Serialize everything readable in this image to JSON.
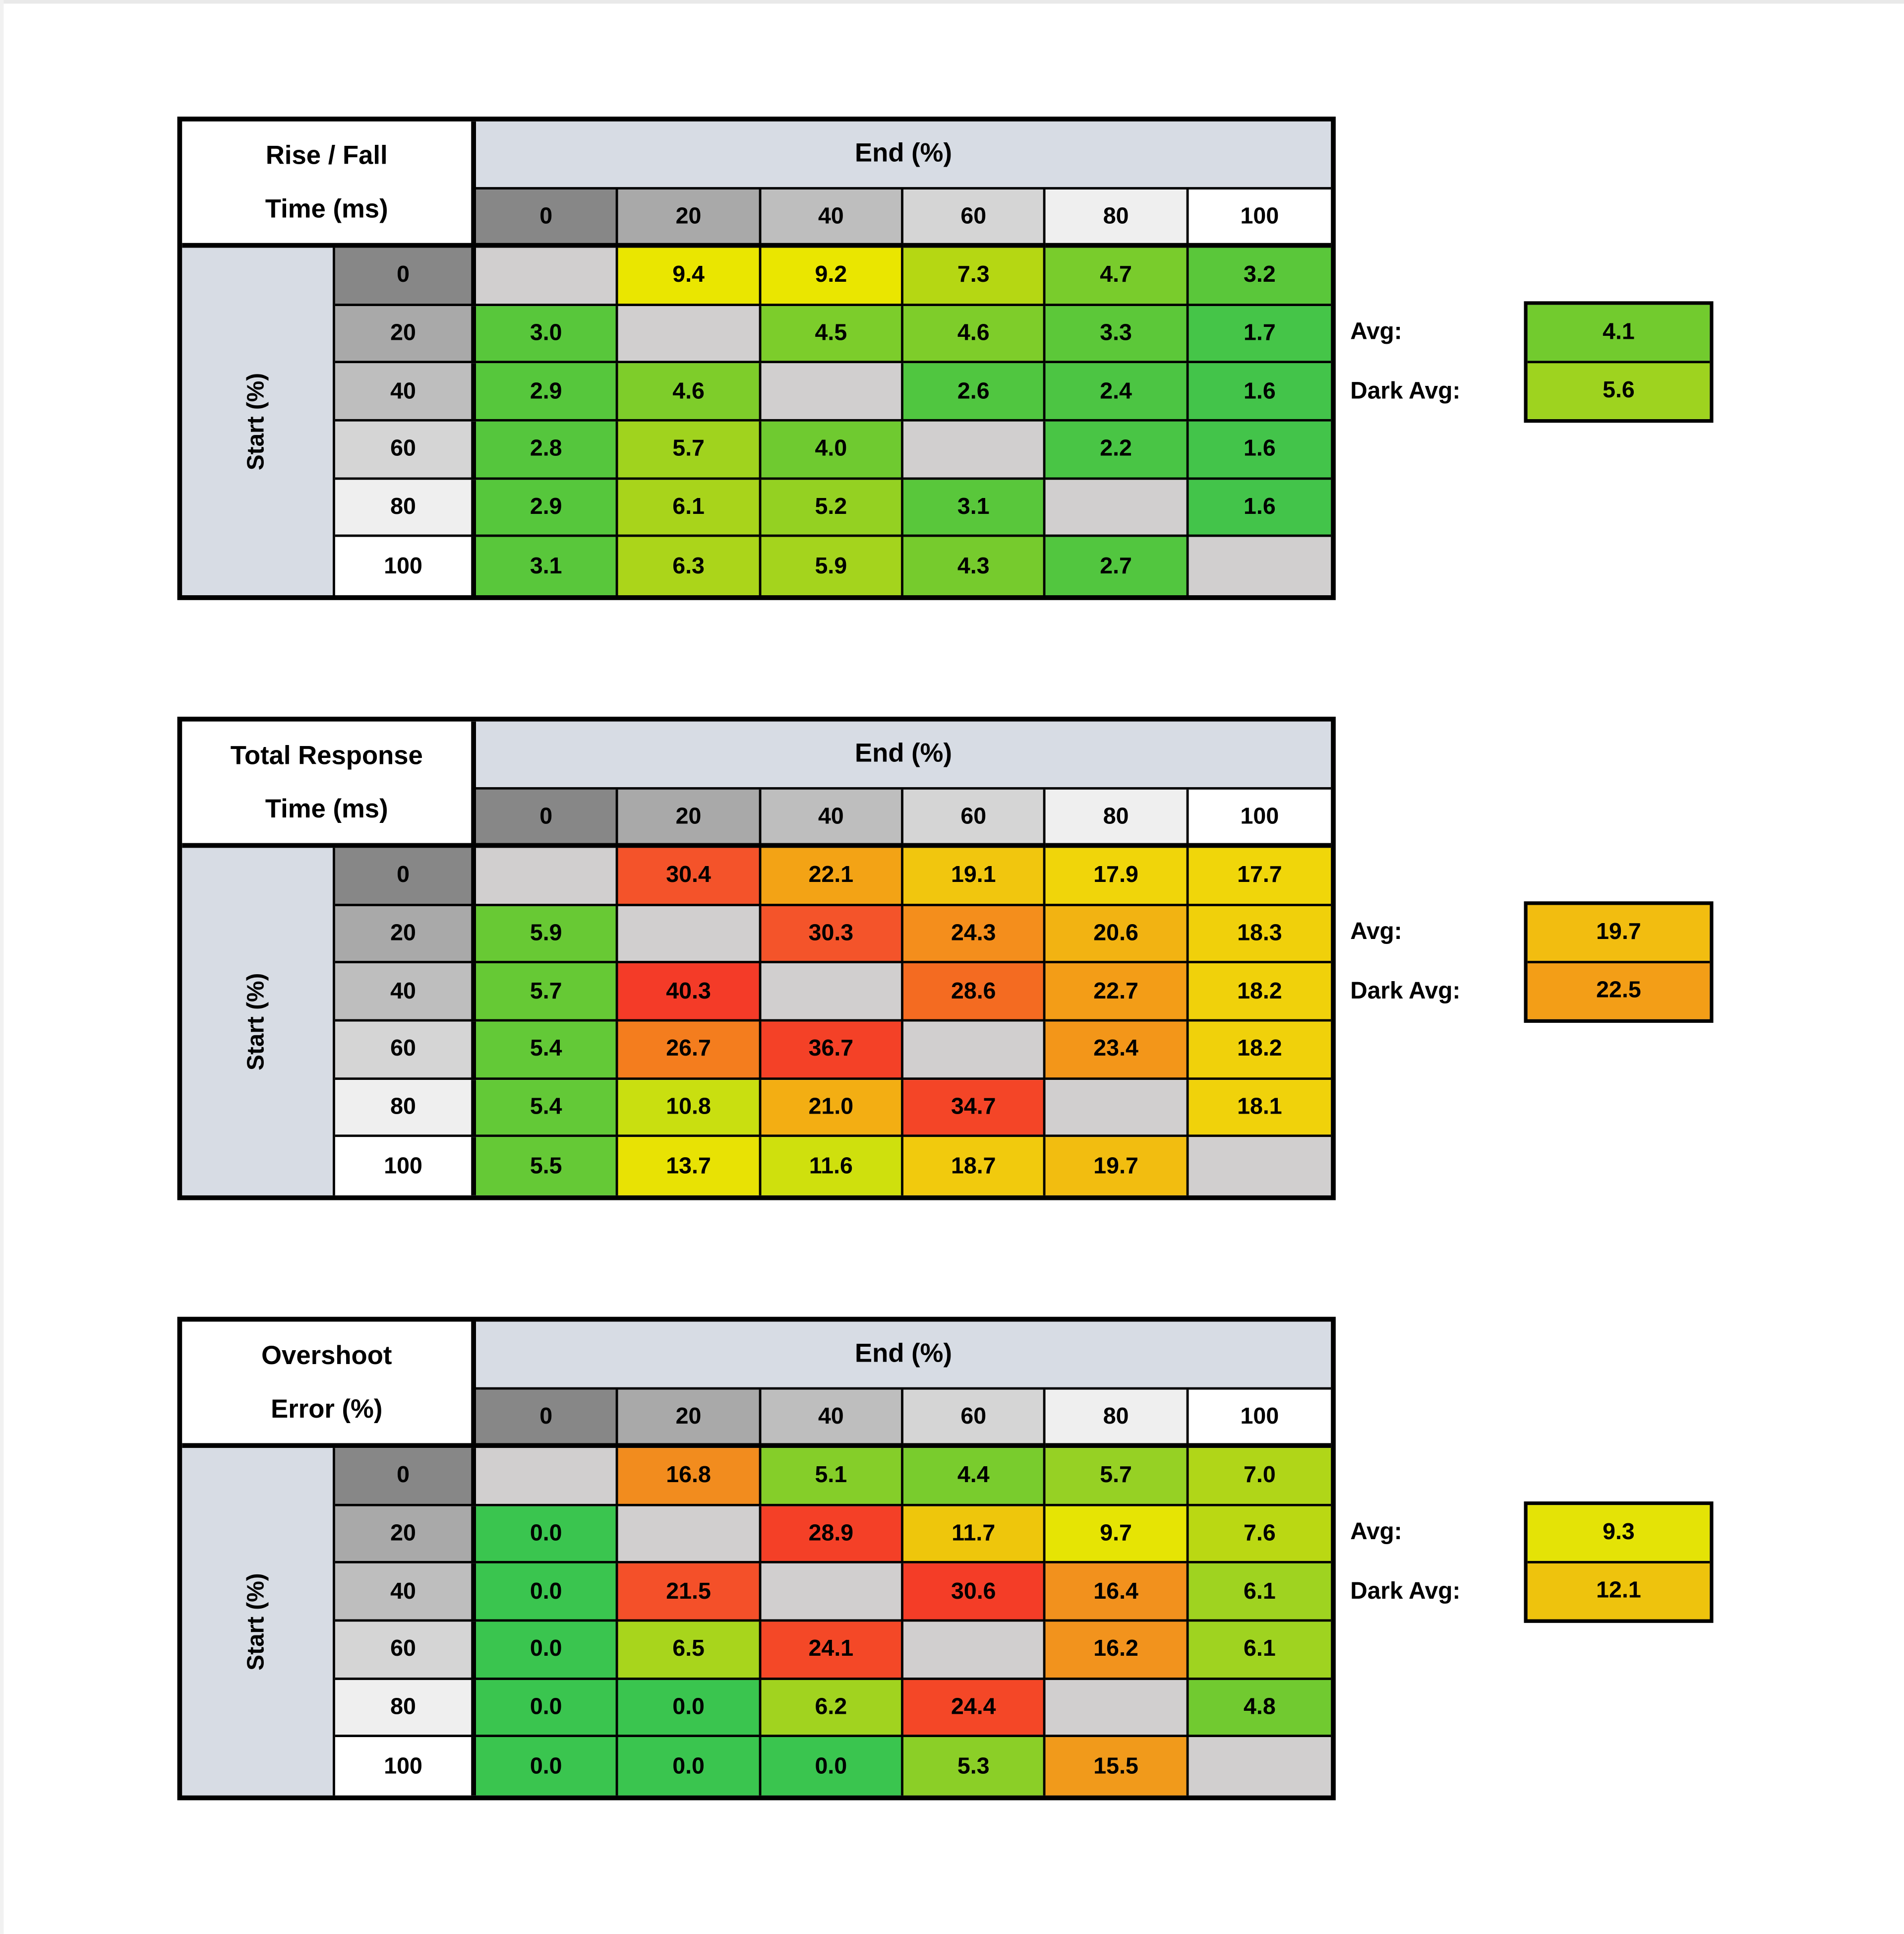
{
  "page": {
    "background": "#ffffff",
    "edge_color": "#e9e9e9"
  },
  "style": {
    "border_color": "#000000",
    "axis_band_color": "#d7dce4",
    "blank_cell_color": "#d1cfcf",
    "title_bg": "#ffffff",
    "header_grays": [
      "#878787",
      "#a9a9a9",
      "#bebebe",
      "#d5d5d5",
      "#efefef",
      "#ffffff"
    ]
  },
  "chart_data": [
    {
      "type": "heatmap",
      "id": "rise-fall-time",
      "title_lines": [
        "Rise / Fall",
        "Time (ms)"
      ],
      "x_axis_label": "End (%)",
      "y_axis_label": "Start (%)",
      "x_ticks": [
        "0",
        "20",
        "40",
        "60",
        "80",
        "100"
      ],
      "y_ticks": [
        "0",
        "20",
        "40",
        "60",
        "80",
        "100"
      ],
      "values": [
        [
          null,
          9.4,
          9.2,
          7.3,
          4.7,
          3.2
        ],
        [
          3.0,
          null,
          4.5,
          4.6,
          3.3,
          1.7
        ],
        [
          2.9,
          4.6,
          null,
          2.6,
          2.4,
          1.6
        ],
        [
          2.8,
          5.7,
          4.0,
          null,
          2.2,
          1.6
        ],
        [
          2.9,
          6.1,
          5.2,
          3.1,
          null,
          1.6
        ],
        [
          3.1,
          6.3,
          5.9,
          4.3,
          2.7,
          null
        ]
      ],
      "cell_colors": [
        [
          null,
          "#eae600",
          "#eae600",
          "#b5d713",
          "#79cc2c",
          "#5ac73a"
        ],
        [
          "#58c73b",
          null,
          "#7ccd2b",
          "#7ecd2a",
          "#5cc839",
          "#45c548"
        ],
        [
          "#56c73c",
          "#7ecd2a",
          null,
          "#50c640",
          "#4cc543",
          "#43c44a"
        ],
        [
          "#55c63d",
          "#a0d31e",
          "#6fca30",
          null,
          "#49c545",
          "#43c44a"
        ],
        [
          "#56c73c",
          "#a8d41b",
          "#94d122",
          "#59c73b",
          null,
          "#43c44a"
        ],
        [
          "#59c73b",
          "#abd51a",
          "#a4d41d",
          "#76cb2d",
          "#52c63f",
          null
        ]
      ],
      "avg": {
        "label": "Avg:",
        "value": 4.1,
        "color": "#72cb2e"
      },
      "dark_avg": {
        "label": "Dark Avg:",
        "value": 5.6,
        "color": "#9ed31f"
      }
    },
    {
      "type": "heatmap",
      "id": "total-response-time",
      "title_lines": [
        "Total Response",
        "Time (ms)"
      ],
      "x_axis_label": "End (%)",
      "y_axis_label": "Start (%)",
      "x_ticks": [
        "0",
        "20",
        "40",
        "60",
        "80",
        "100"
      ],
      "y_ticks": [
        "0",
        "20",
        "40",
        "60",
        "80",
        "100"
      ],
      "values": [
        [
          null,
          30.4,
          22.1,
          19.1,
          17.9,
          17.7
        ],
        [
          5.9,
          null,
          30.3,
          24.3,
          20.6,
          18.3
        ],
        [
          5.7,
          40.3,
          null,
          28.6,
          22.7,
          18.2
        ],
        [
          5.4,
          26.7,
          36.7,
          null,
          23.4,
          18.2
        ],
        [
          5.4,
          10.8,
          21.0,
          34.7,
          null,
          18.1
        ],
        [
          5.5,
          13.7,
          11.6,
          18.7,
          19.7,
          null
        ]
      ],
      "cell_colors": [
        [
          null,
          "#f4532a",
          "#f3a315",
          "#f1c60e",
          "#f0d50a",
          "#f0d60a"
        ],
        [
          "#68c934",
          null,
          "#f4542a",
          "#f48e1c",
          "#f2b312",
          "#f0d00b"
        ],
        [
          "#66c935",
          "#f43b28",
          null,
          "#f46b21",
          "#f39d17",
          "#f0d10b"
        ],
        [
          "#63c937",
          "#f47d1e",
          "#f44127",
          null,
          "#f39619",
          "#f0d10b"
        ],
        [
          "#63c937",
          "#c9df10",
          "#f3ae13",
          "#f44527",
          null,
          "#f0d20b"
        ],
        [
          "#65c936",
          "#e8e204",
          "#cfe00d",
          "#f1ca0d",
          "#f2bd10",
          null
        ]
      ],
      "avg": {
        "label": "Avg:",
        "value": 19.7,
        "color": "#f2bd10"
      },
      "dark_avg": {
        "label": "Dark Avg:",
        "value": 22.5,
        "color": "#f39e17"
      }
    },
    {
      "type": "heatmap",
      "id": "overshoot-error",
      "title_lines": [
        "Overshoot",
        "Error (%)"
      ],
      "x_axis_label": "End (%)",
      "y_axis_label": "Start (%)",
      "x_ticks": [
        "0",
        "20",
        "40",
        "60",
        "80",
        "100"
      ],
      "y_ticks": [
        "0",
        "20",
        "40",
        "60",
        "80",
        "100"
      ],
      "values": [
        [
          null,
          16.8,
          5.1,
          4.4,
          5.7,
          7.0
        ],
        [
          0.0,
          null,
          28.9,
          11.7,
          9.7,
          7.6
        ],
        [
          0.0,
          21.5,
          null,
          30.6,
          16.4,
          6.1
        ],
        [
          0.0,
          6.5,
          24.1,
          null,
          16.2,
          6.1
        ],
        [
          0.0,
          0.0,
          6.2,
          24.4,
          null,
          4.8
        ],
        [
          0.0,
          0.0,
          0.0,
          5.3,
          15.5,
          null
        ]
      ],
      "cell_colors": [
        [
          null,
          "#f28c1e",
          "#85ce29",
          "#79cc2d",
          "#96d124",
          "#b0d618"
        ],
        [
          "#3ac54f",
          null,
          "#f44027",
          "#eec60c",
          "#e6e404",
          "#bad813"
        ],
        [
          "#3ac54f",
          "#f45029",
          null,
          "#f43d27",
          "#f2911d",
          "#9fd320"
        ],
        [
          "#3ac54f",
          "#a8d51c",
          "#f44827",
          null,
          "#f2931d",
          "#9fd320"
        ],
        [
          "#3ac54f",
          "#3ac54f",
          "#a1d31f",
          "#f44727",
          null,
          "#71ca30"
        ],
        [
          "#3ac54f",
          "#3ac54f",
          "#3ac54f",
          "#8bcf27",
          "#f19a1b",
          null
        ]
      ],
      "avg": {
        "label": "Avg:",
        "value": 9.3,
        "color": "#e4e306"
      },
      "dark_avg": {
        "label": "Dark Avg:",
        "value": 12.1,
        "color": "#eec30d"
      }
    }
  ]
}
